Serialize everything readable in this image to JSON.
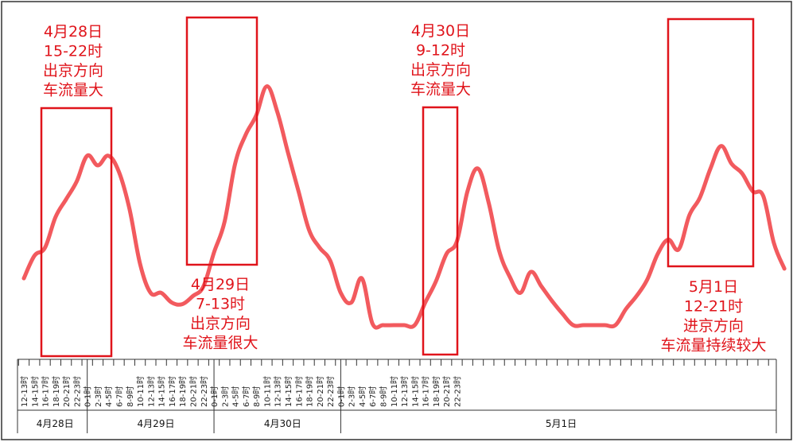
{
  "chart_data": {
    "type": "line",
    "series_color": "#f25a5e",
    "annotation_color": "#e0141b",
    "grid": false,
    "days": [
      {
        "label": "4月28日",
        "hours": [
          "12-13时",
          "14-15时",
          "16-17时",
          "18-19时",
          "20-21时",
          "22-23时"
        ]
      },
      {
        "label": "4月29日",
        "hours": [
          "0-1时",
          "2-3时",
          "4-5时",
          "6-7时",
          "8-9时",
          "10-11时",
          "12-13时",
          "14-15时",
          "16-17时",
          "18-19时",
          "20-21时",
          "22-23时"
        ]
      },
      {
        "label": "4月30日",
        "hours": [
          "0-1时",
          "2-3时",
          "4-5时",
          "6-7时",
          "8-9时",
          "10-11时",
          "12-13时",
          "14-15时",
          "16-17时",
          "18-19时",
          "20-21时",
          "22-23时"
        ]
      },
      {
        "label": "5月1日",
        "hours": [
          "0-1时",
          "2-3时",
          "4-5时",
          "6-7时",
          "8-9时",
          "10-11时",
          "12-13时",
          "14-15时",
          "16-17时",
          "18-19时",
          "20-21时",
          "22-23时"
        ]
      }
    ],
    "values": [
      39,
      53,
      58,
      77,
      88,
      99,
      115,
      109,
      115,
      105,
      82,
      48,
      30,
      30,
      24,
      23,
      28,
      34,
      55,
      74,
      110,
      128,
      140,
      158,
      142,
      117,
      93,
      69,
      58,
      50,
      30,
      24,
      39,
      11,
      10,
      10,
      10,
      10,
      24,
      37,
      54,
      62,
      93,
      107,
      86,
      56,
      40,
      30,
      43,
      34,
      25,
      17,
      10,
      10,
      10,
      10,
      10,
      20,
      28,
      38,
      54,
      63,
      57,
      78,
      89,
      107,
      121,
      110,
      104,
      93,
      90,
      61,
      45
    ],
    "annotations": [
      {
        "lines": [
          "4月28日",
          "15-22时",
          "出京方向",
          "车流量大"
        ]
      },
      {
        "lines": [
          "4月29日",
          "7-13时",
          "出京方向",
          "车流量很大"
        ]
      },
      {
        "lines": [
          "4月30日",
          "9-12时",
          "出京方向",
          "车流量大"
        ]
      },
      {
        "lines": [
          "5月1日",
          "12-21时",
          "进京方向",
          "车流量持续较大"
        ]
      }
    ]
  }
}
